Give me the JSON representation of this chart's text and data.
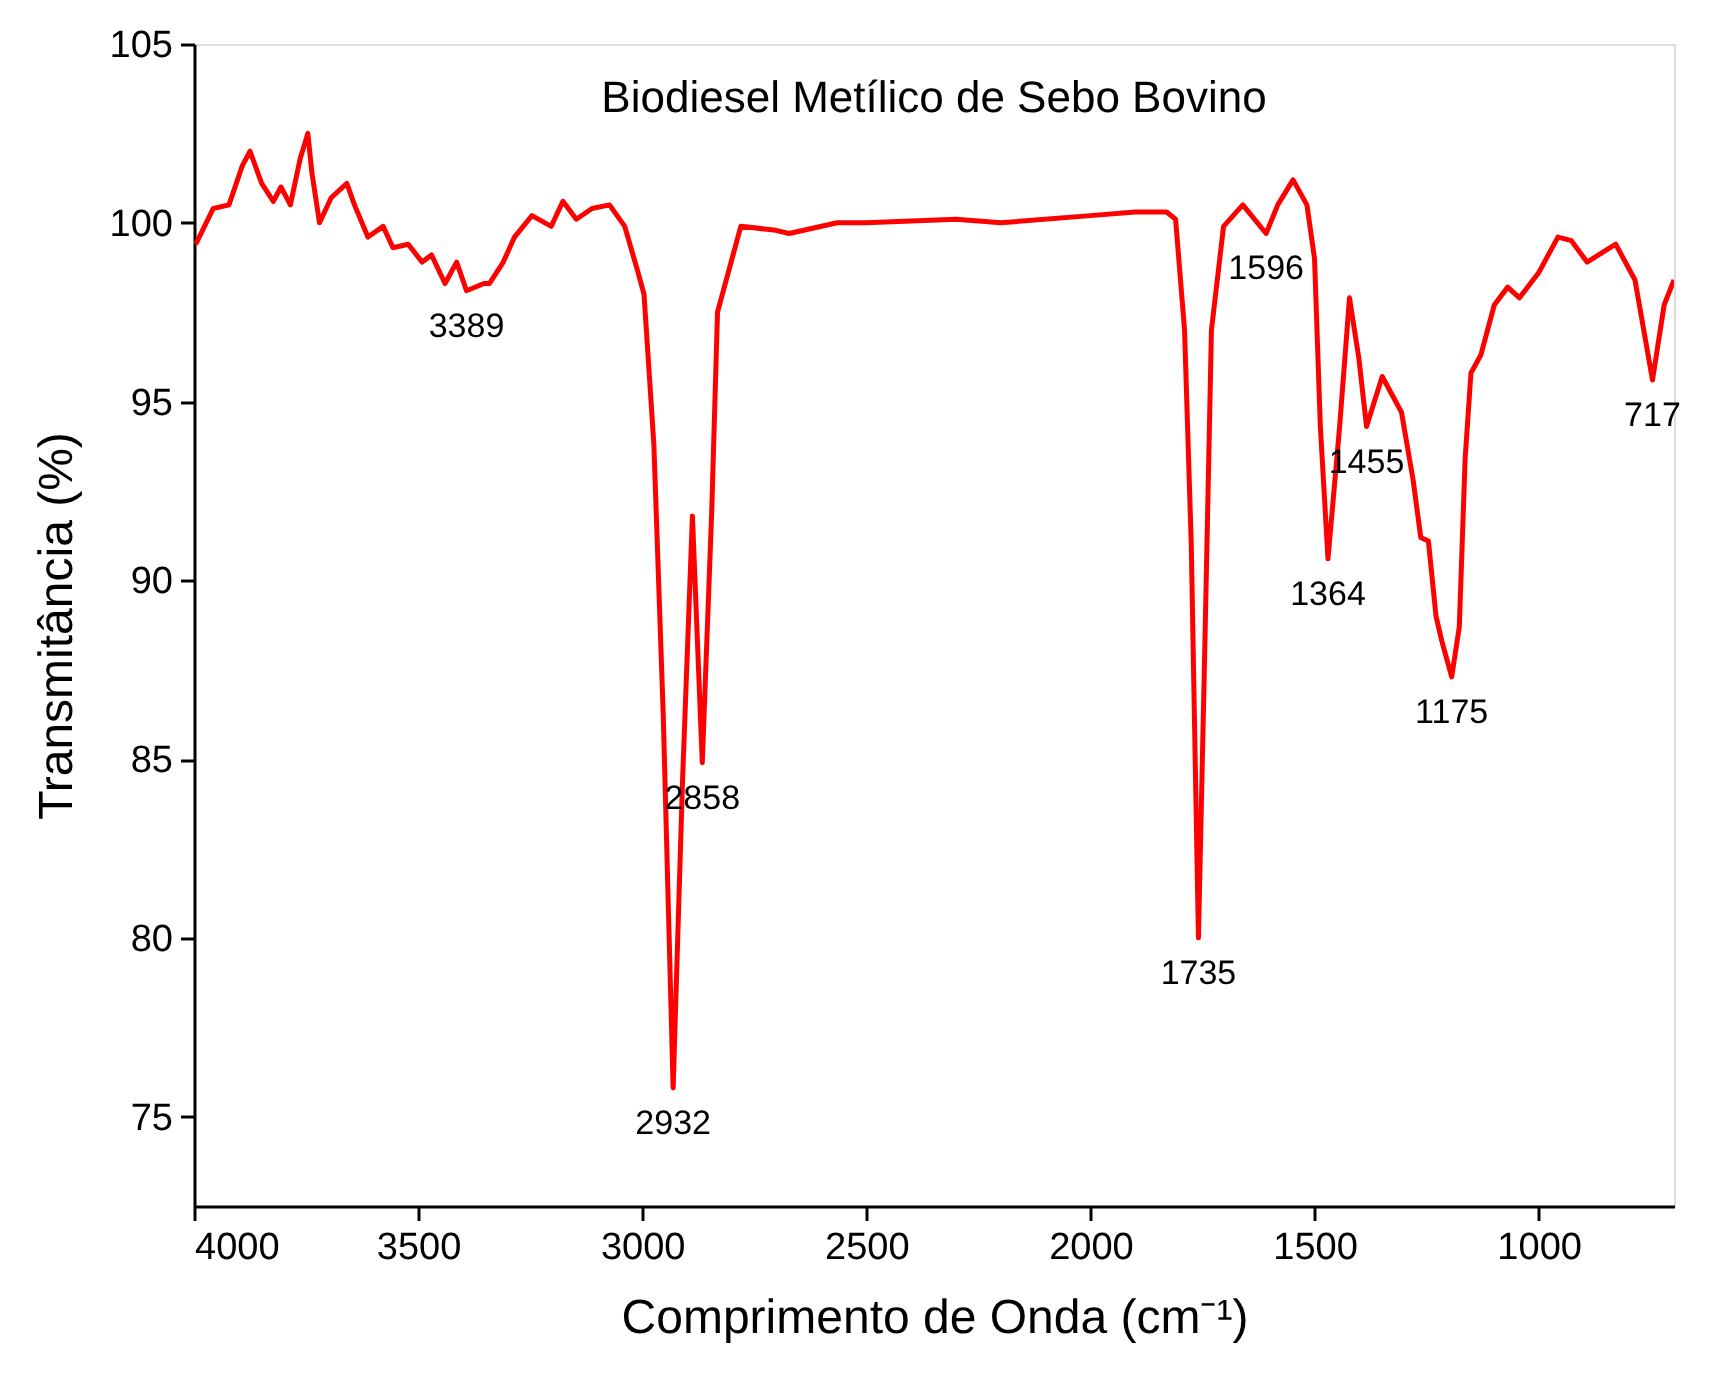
{
  "chart_data": {
    "type": "line",
    "title": "Biodiesel Metílico de Sebo Bovino",
    "xlabel": "Comprimento de Onda (cm⁻¹)",
    "ylabel": "Transmitância (%)",
    "xlim": [
      4000,
      698
    ],
    "xticks": [
      4000,
      3500,
      3000,
      2500,
      2000,
      1500,
      1000
    ],
    "ylim": [
      72.5,
      105
    ],
    "yticks": [
      75,
      80,
      85,
      90,
      95,
      100,
      105
    ],
    "grid": false,
    "series": [
      {
        "color": "#ff0000",
        "x": [
          3996,
          3957,
          3922,
          3892,
          3875,
          3849,
          3823,
          3806,
          3785,
          3763,
          3746,
          3737,
          3720,
          3694,
          3659,
          3642,
          3612,
          3578,
          3556,
          3522,
          3491,
          3470,
          3440,
          3414,
          3392,
          3353,
          3341,
          3310,
          3285,
          3246,
          3203,
          3177,
          3147,
          3112,
          3073,
          3039,
          3009,
          2996,
          2974,
          2953,
          2931,
          2910,
          2888,
          2866,
          2845,
          2832,
          2780,
          2707,
          2672,
          2565,
          2500,
          2300,
          2200,
          2000,
          1900,
          1830,
          1810,
          1790,
          1775,
          1759,
          1745,
          1730,
          1703,
          1660,
          1608,
          1582,
          1548,
          1517,
          1500,
          1487,
          1470,
          1444,
          1422,
          1401,
          1384,
          1349,
          1306,
          1280,
          1263,
          1246,
          1229,
          1216,
          1194,
          1177,
          1164,
          1151,
          1129,
          1099,
          1069,
          1043,
          1000,
          957,
          927,
          892,
          828,
          785,
          746,
          720,
          698
        ],
        "values": [
          99.4,
          100.4,
          100.5,
          101.6,
          102.0,
          101.1,
          100.6,
          101.0,
          100.5,
          101.8,
          102.5,
          101.4,
          100.0,
          100.7,
          101.1,
          100.5,
          99.6,
          99.9,
          99.3,
          99.4,
          98.9,
          99.1,
          98.3,
          98.9,
          98.1,
          98.3,
          98.3,
          98.9,
          99.6,
          100.2,
          99.9,
          100.6,
          100.1,
          100.4,
          100.5,
          99.9,
          98.6,
          98.0,
          93.8,
          86.2,
          75.8,
          84.4,
          91.8,
          84.9,
          91.9,
          97.5,
          99.9,
          99.8,
          99.7,
          100.0,
          100.0,
          100.1,
          100.0,
          100.2,
          100.3,
          100.3,
          100.1,
          97.0,
          91.0,
          80.0,
          88.0,
          97.0,
          99.9,
          100.5,
          99.7,
          100.5,
          101.2,
          100.5,
          99.0,
          94.3,
          90.6,
          94.3,
          97.9,
          96.2,
          94.3,
          95.7,
          94.7,
          92.8,
          91.2,
          91.1,
          89.0,
          88.3,
          87.3,
          88.7,
          93.4,
          95.8,
          96.3,
          97.7,
          98.2,
          97.9,
          98.6,
          99.6,
          99.5,
          98.9,
          99.4,
          98.4,
          95.6,
          97.7,
          98.4
        ]
      }
    ],
    "annotations": [
      {
        "text": "3389",
        "x": 3392,
        "y": 98.1
      },
      {
        "text": "2932",
        "x": 2931,
        "y": 75.8
      },
      {
        "text": "2858",
        "x": 2866,
        "y": 84.9
      },
      {
        "text": "1735",
        "x": 1759,
        "y": 80.0
      },
      {
        "text": "1596",
        "x": 1608,
        "y": 99.7
      },
      {
        "text": "1364",
        "x": 1470,
        "y": 90.6
      },
      {
        "text": "1455",
        "x": 1384,
        "y": 94.3
      },
      {
        "text": "1175",
        "x": 1194,
        "y": 87.3
      },
      {
        "text": "717",
        "x": 746,
        "y": 95.6
      }
    ]
  }
}
